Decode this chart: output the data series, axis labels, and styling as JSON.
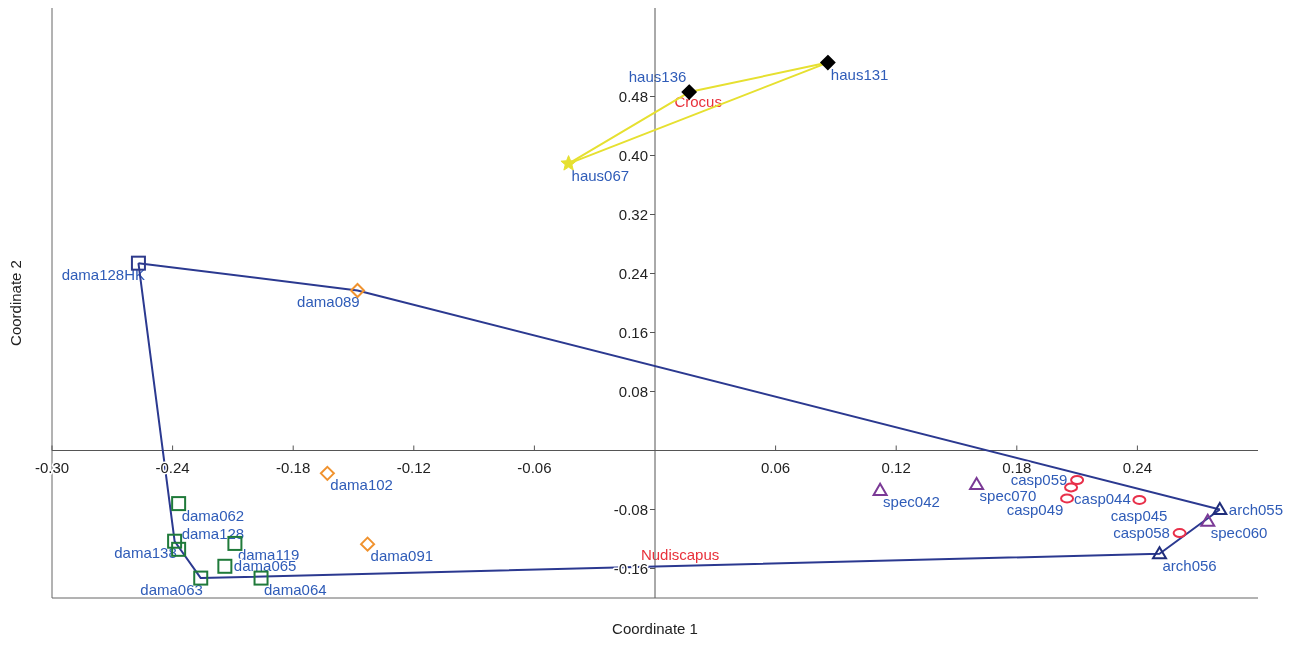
{
  "chart_data": {
    "type": "scatter",
    "xlabel": "Coordinate 1",
    "ylabel": "Coordinate 2",
    "xlim": [
      -0.3,
      0.3
    ],
    "ylim": [
      -0.2,
      0.6
    ],
    "xticks": [
      {
        "value": -0.3,
        "label": "-0.30"
      },
      -0.24,
      -0.18,
      -0.12,
      -0.06,
      0.06,
      0.12,
      0.18,
      0.24
    ],
    "yticks": [
      -0.16,
      -0.08,
      0.08,
      0.16,
      0.24,
      0.32,
      {
        "value": 0.4,
        "label": "0.40"
      },
      0.48
    ],
    "grid": false,
    "series": [
      {
        "type": "line",
        "marker": "none",
        "color": "#e6e030",
        "x": [
          -0.043,
          0.017,
          0.086
        ],
        "values": [
          0.389,
          0.486,
          0.526
        ]
      },
      {
        "type": "line",
        "name": "Crocus",
        "marker": "none",
        "color": "#e6e030",
        "x": [
          -0.043,
          0.086
        ],
        "values": [
          0.389,
          0.526
        ]
      },
      {
        "type": "line",
        "marker": "none",
        "color": "#2b3990",
        "x": [
          -0.257,
          -0.148,
          0.281
        ],
        "values": [
          0.254,
          0.217,
          -0.08
        ]
      },
      {
        "type": "line",
        "name": "Nudiscapus",
        "marker": "none",
        "color": "#2b3990",
        "x": [
          -0.257,
          -0.239,
          -0.226,
          0.251,
          0.281
        ],
        "values": [
          0.254,
          -0.123,
          -0.173,
          -0.14,
          -0.08
        ]
      },
      {
        "marker": "star",
        "color": "#e6e030",
        "x": [
          -0.043
        ],
        "values": [
          0.389
        ],
        "value_labels": [
          "haus067"
        ]
      },
      {
        "marker": "diamond",
        "color": "#000000",
        "x": [
          0.086,
          0.017
        ],
        "values": [
          0.526,
          0.486
        ],
        "value_labels": [
          "haus131",
          "haus136"
        ]
      },
      {
        "marker": "square",
        "color": "#2e3a8c",
        "x": [
          -0.257
        ],
        "values": [
          0.254
        ],
        "value_labels": [
          "dama128HK"
        ]
      },
      {
        "marker": "diamond",
        "color": "#f0922e",
        "x": [
          -0.148,
          -0.163,
          -0.143
        ],
        "values": [
          0.217,
          -0.031,
          -0.127
        ],
        "value_labels": [
          "dama089",
          "dama102",
          "dama091"
        ]
      },
      {
        "marker": "square",
        "color": "#1f7a3a",
        "x": [
          -0.237,
          -0.209,
          -0.239,
          -0.237,
          -0.214,
          -0.226,
          -0.196
        ],
        "values": [
          -0.072,
          -0.126,
          -0.123,
          -0.134,
          -0.157,
          -0.173,
          -0.173
        ],
        "value_labels": [
          "dama062",
          "dama119",
          "dama138",
          "dama128",
          "dama065",
          "dama063",
          "dama064"
        ]
      },
      {
        "marker": "triangle",
        "color": "#7b3a96",
        "x": [
          0.112,
          0.16,
          0.275
        ],
        "values": [
          -0.054,
          -0.046,
          -0.096
        ],
        "value_labels": [
          "spec042",
          "spec070",
          "spec060"
        ]
      },
      {
        "marker": "circle",
        "color": "#e8304a",
        "x": [
          0.21,
          0.207,
          0.205,
          0.241,
          0.261
        ],
        "values": [
          -0.04,
          -0.05,
          -0.065,
          -0.067,
          -0.112
        ],
        "value_labels": [
          "casp059",
          "casp044",
          "casp049",
          "casp045",
          "casp058"
        ]
      },
      {
        "marker": "triangle",
        "color": "#1f2d7a",
        "x": [
          0.281,
          0.251
        ],
        "values": [
          -0.08,
          -0.14
        ],
        "value_labels": [
          "arch055",
          "arch056"
        ]
      }
    ]
  }
}
